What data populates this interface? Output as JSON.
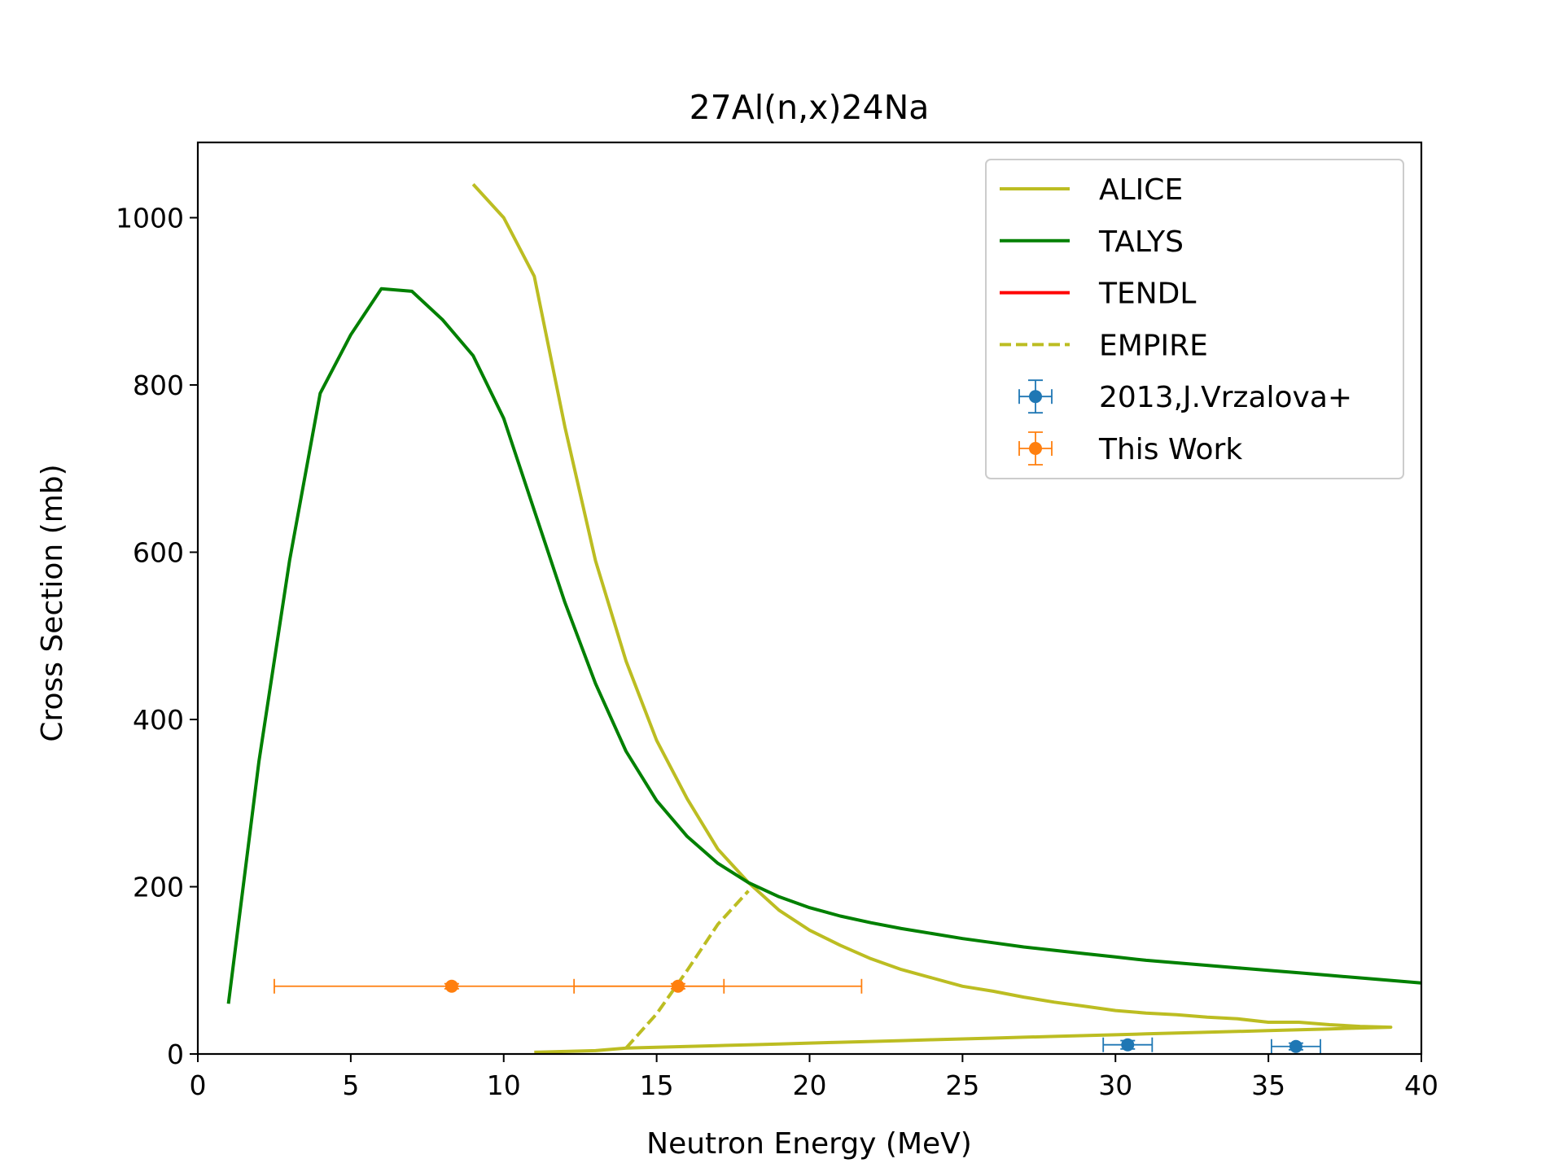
{
  "chart_data": {
    "type": "line",
    "title": "27Al(n,x)24Na",
    "xlabel": "Neutron Energy (MeV)",
    "ylabel": "Cross Section (mb)",
    "xlim": [
      0,
      40
    ],
    "ylim": [
      0,
      1090
    ],
    "xticks": [
      0,
      5,
      10,
      15,
      20,
      25,
      30,
      35,
      40
    ],
    "yticks": [
      0,
      200,
      400,
      600,
      800,
      1000
    ],
    "xtick_labels": [
      "0",
      "5",
      "10",
      "15",
      "20",
      "25",
      "30",
      "35",
      "40"
    ],
    "ytick_labels": [
      "0",
      "200",
      "400",
      "600",
      "800",
      "1000"
    ],
    "grid": false,
    "legend_position": "top-right",
    "series": [
      {
        "name": "ALICE",
        "kind": "line",
        "color": "#bcbd22",
        "dash": "solid",
        "x": [
          9,
          10,
          11,
          12,
          13,
          14,
          15,
          16,
          17,
          18,
          19,
          20,
          21,
          22,
          23,
          24,
          25,
          26,
          27,
          28,
          29,
          30,
          31,
          32,
          33,
          34,
          35,
          36,
          37,
          38,
          39,
          38,
          37,
          36,
          35,
          34,
          33,
          32,
          31,
          30,
          29,
          28,
          27,
          26,
          25,
          24,
          23,
          22,
          21,
          20,
          19,
          18,
          17,
          16,
          15,
          14,
          13,
          12,
          11
        ],
        "y": [
          1040,
          1000,
          930,
          750,
          590,
          470,
          375,
          305,
          245,
          205,
          172,
          148,
          130,
          114,
          101,
          91,
          81,
          75,
          68,
          62,
          57,
          52,
          49,
          47,
          44,
          42,
          38,
          38,
          35,
          33,
          32,
          31,
          30,
          29,
          28,
          27,
          26,
          25,
          24,
          23,
          22,
          21,
          20,
          19,
          18,
          17,
          16,
          15,
          14,
          13,
          12,
          11,
          10,
          9,
          8,
          7,
          4,
          3,
          2
        ]
      },
      {
        "name": "TALYS",
        "kind": "line",
        "color": "#008000",
        "dash": "solid",
        "x": [
          1,
          2,
          3,
          4,
          5,
          6,
          7,
          8,
          9,
          10,
          11,
          12,
          13,
          14,
          15,
          16,
          17,
          18,
          19,
          20,
          21,
          22,
          23,
          24,
          25,
          26,
          27,
          28,
          29,
          30,
          31,
          32,
          33,
          34,
          35,
          36,
          37,
          38,
          39,
          40
        ],
        "y": [
          60,
          350,
          590,
          790,
          860,
          915,
          912,
          878,
          835,
          760,
          650,
          540,
          443,
          362,
          303,
          260,
          228,
          205,
          188,
          175,
          165,
          157,
          150,
          144,
          138,
          133,
          128,
          124,
          120,
          116,
          112,
          109,
          106,
          103,
          100,
          97,
          94,
          91,
          88,
          85
        ]
      },
      {
        "name": "TENDL",
        "kind": "line",
        "color": "#ff0000",
        "dash": "solid",
        "x": [],
        "y": []
      },
      {
        "name": "EMPIRE",
        "kind": "line",
        "color": "#bcbd22",
        "dash": "dashed",
        "x": [
          14,
          15,
          16,
          17,
          18
        ],
        "y": [
          7,
          48,
          100,
          155,
          195
        ]
      },
      {
        "name": "2013,J.Vrzalova+",
        "kind": "errorbar",
        "color": "#1f77b4",
        "points": [
          {
            "x": 30.4,
            "y": 11,
            "xerr": 0.8,
            "yerr": 5
          },
          {
            "x": 35.9,
            "y": 9,
            "xerr": 0.8,
            "yerr": 4
          }
        ]
      },
      {
        "name": "This Work",
        "kind": "errorbar",
        "color": "#ff7f0e",
        "points": [
          {
            "x": 8.3,
            "y": 81,
            "xerr_minus": 5.8,
            "xerr_plus": 8.9,
            "yerr": 3
          },
          {
            "x": 15.7,
            "y": 81,
            "xerr_minus": 3.4,
            "xerr_plus": 6.0,
            "yerr": 3
          }
        ]
      }
    ]
  }
}
